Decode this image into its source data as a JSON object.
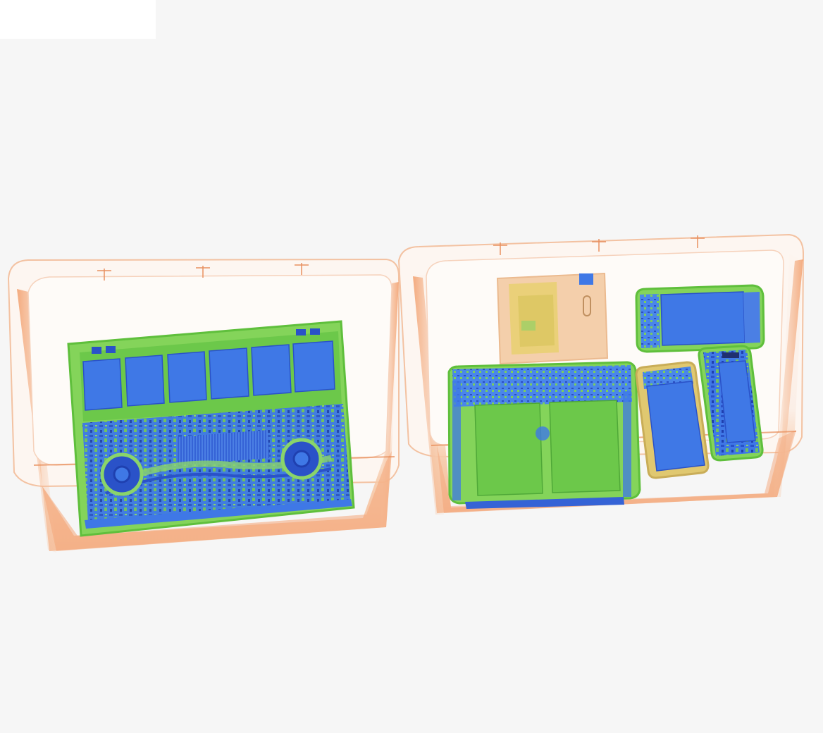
{
  "image": {
    "kind": "x-ray-scan",
    "colors": {
      "background": "#f6f6f6",
      "patch": "#ffffff",
      "tray_fill": "#fbeee6",
      "tray_stroke": "#f0b48c",
      "tray_shadow": "#f2a679",
      "device_green": "#84d45a",
      "device_green_dark": "#5fbf3c",
      "device_blue": "#3f78e6",
      "device_blue_dark": "#2a52c8",
      "paper_orange": "#f1c08a",
      "paper_yellow": "#e8d070"
    },
    "trays": [
      {
        "name": "left-tray",
        "contents": [
          {
            "name": "laptop",
            "icon": "laptop-xray-icon"
          }
        ]
      },
      {
        "name": "right-tray",
        "contents": [
          {
            "name": "card-wallet",
            "icon": "card-xray-icon"
          },
          {
            "name": "tablet",
            "icon": "tablet-xray-icon"
          },
          {
            "name": "phone-1",
            "icon": "phone-xray-icon"
          },
          {
            "name": "phone-2",
            "icon": "phone-xray-icon"
          },
          {
            "name": "phone-3",
            "icon": "phone-xray-icon"
          }
        ]
      }
    ]
  }
}
